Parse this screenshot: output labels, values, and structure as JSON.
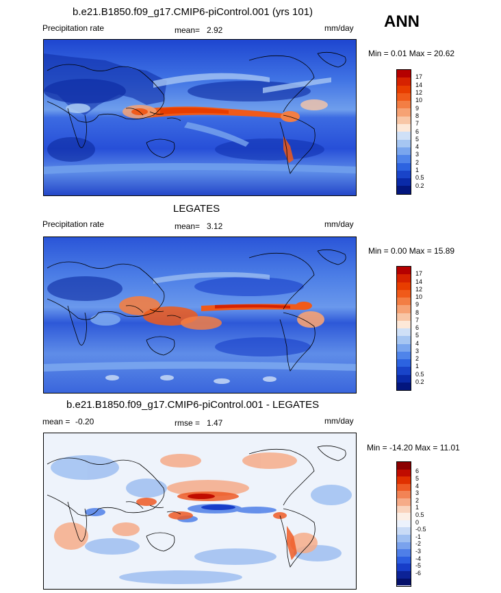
{
  "header": {
    "title": "b.e21.B1850.f09_g17.CMIP6-piControl.001 (yrs 101)",
    "season": "ANN"
  },
  "panels": [
    {
      "id": "model",
      "title": "",
      "variable": "Precipitation rate",
      "stat_label": "mean=",
      "stat_value": "2.92",
      "stat2_label": "",
      "stat2_value": "",
      "units": "mm/day",
      "minmax": "Min =   0.01 Max =  20.62",
      "colorbar_labels": [
        "17",
        "14",
        "12",
        "10",
        "9",
        "8",
        "7",
        "6",
        "5",
        "4",
        "3",
        "2",
        "1",
        "0.5",
        "0.2"
      ]
    },
    {
      "id": "obs",
      "title": "LEGATES",
      "variable": "Precipitation rate",
      "stat_label": "mean=",
      "stat_value": "3.12",
      "stat2_label": "",
      "stat2_value": "",
      "units": "mm/day",
      "minmax": "Min =   0.00 Max =  15.89",
      "colorbar_labels": [
        "17",
        "14",
        "12",
        "10",
        "9",
        "8",
        "7",
        "6",
        "5",
        "4",
        "3",
        "2",
        "1",
        "0.5",
        "0.2"
      ]
    },
    {
      "id": "diff",
      "title": "b.e21.B1850.f09_g17.CMIP6-piControl.001 - LEGATES",
      "variable": "",
      "stat_label": "mean =",
      "stat_value": "-0.20",
      "stat2_label": "rmse =",
      "stat2_value": "1.47",
      "units": "mm/day",
      "minmax": "Min = -14.20 Max =  11.01",
      "colorbar_labels": [
        "6",
        "5",
        "4",
        "3",
        "2",
        "1",
        "0.5",
        "0",
        "-0.5",
        "-1",
        "-2",
        "-3",
        "-4",
        "-5",
        "-6"
      ]
    }
  ],
  "colors": {
    "precip_scale": [
      "#b50000",
      "#d62200",
      "#e83d00",
      "#f05a1a",
      "#f37e44",
      "#f6a274",
      "#f8c6a6",
      "#fde8d8",
      "#cfe0f7",
      "#a6c6f2",
      "#7aa6ee",
      "#4f84ea",
      "#2c63e0",
      "#1944c9",
      "#0a2aa8",
      "#03167e"
    ],
    "diff_scale": [
      "#8c0000",
      "#c00c00",
      "#e03000",
      "#ee5a25",
      "#f28355",
      "#f6ab88",
      "#f9d3bd",
      "#fcefe6",
      "#ecf2fc",
      "#c9dbf6",
      "#9fbff1",
      "#7aa2ed",
      "#4f7fe8",
      "#2c5ee0",
      "#173dc8",
      "#0c2296",
      "#04106a"
    ]
  }
}
